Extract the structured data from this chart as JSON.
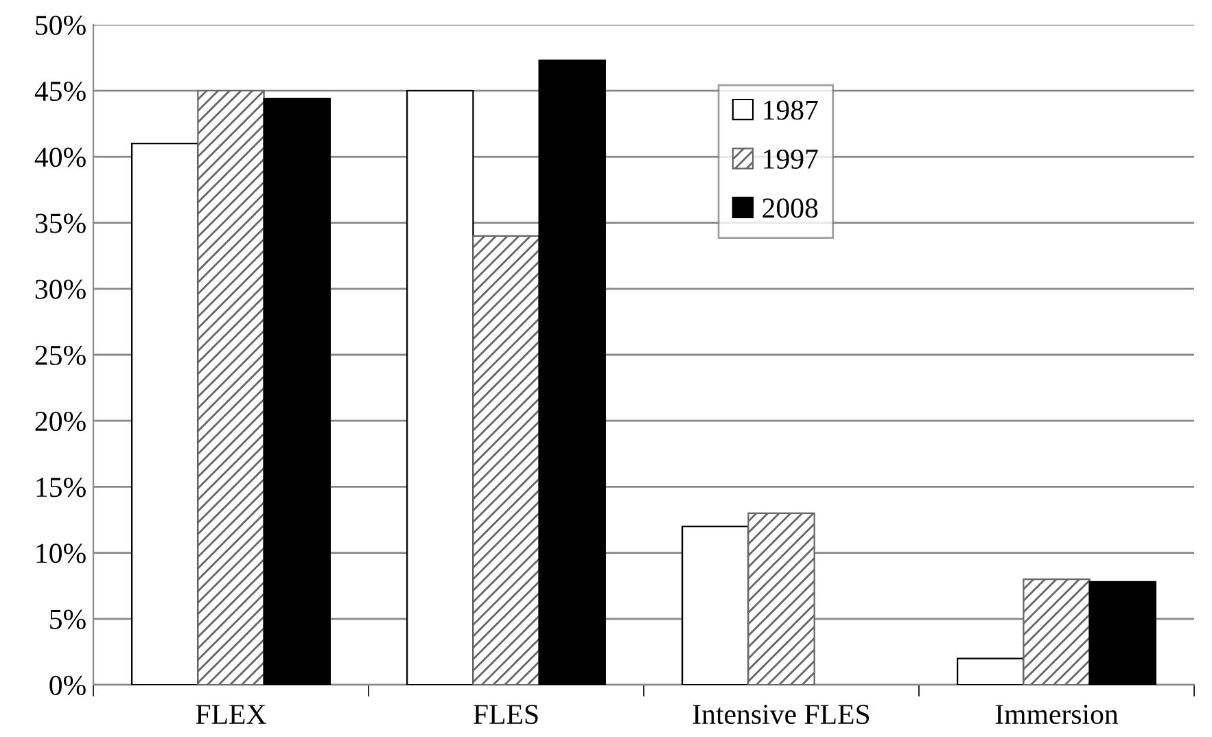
{
  "chart_data": {
    "type": "bar",
    "categories": [
      "FLEX",
      "FLES",
      "Intensive FLES",
      "Immersion"
    ],
    "series": [
      {
        "name": "1987",
        "color": "#ffffff",
        "values": [
          41,
          45,
          12,
          2
        ]
      },
      {
        "name": "1997",
        "color": "#666666",
        "values": [
          45,
          34,
          13,
          8
        ]
      },
      {
        "name": "2008",
        "color": "#000000",
        "values": [
          44.4,
          47.3,
          null,
          7.8
        ]
      }
    ],
    "ylim": [
      0,
      50
    ],
    "yticks": [
      {
        "value": 0,
        "label": "0%"
      },
      {
        "value": 5,
        "label": "5%"
      },
      {
        "value": 10,
        "label": "10%"
      },
      {
        "value": 15,
        "label": "15%"
      },
      {
        "value": 20,
        "label": "20%"
      },
      {
        "value": 25,
        "label": "25%"
      },
      {
        "value": 30,
        "label": "30%"
      },
      {
        "value": 35,
        "label": "35%"
      },
      {
        "value": 40,
        "label": "40%"
      },
      {
        "value": 45,
        "label": "45%"
      },
      {
        "value": 50,
        "label": "50%"
      }
    ],
    "grid": "y",
    "legend": "top"
  }
}
